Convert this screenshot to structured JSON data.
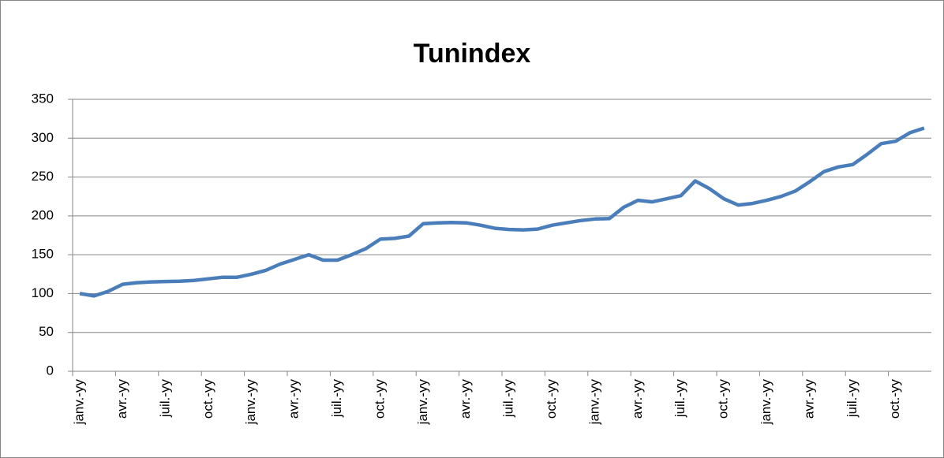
{
  "chart_data": {
    "type": "line",
    "title": "Tunindex",
    "categories": [
      "janv.-yy",
      null,
      null,
      "avr.-yy",
      null,
      null,
      "juil.-yy",
      null,
      null,
      "oct.-yy",
      null,
      null,
      "janv.-yy",
      null,
      null,
      "avr.-yy",
      null,
      null,
      "juil.-yy",
      null,
      null,
      "oct.-yy",
      null,
      null,
      "janv.-yy",
      null,
      null,
      "avr.-yy",
      null,
      null,
      "juil.-yy",
      null,
      null,
      "oct.-yy",
      null,
      null,
      "janv.-yy",
      null,
      null,
      "avr.-yy",
      null,
      null,
      "juil.-yy",
      null,
      null,
      "oct.-yy",
      null,
      null,
      "janv.-yy",
      null,
      null,
      "avr.-yy",
      null,
      null,
      "juil.-yy",
      null,
      null,
      "oct.-yy",
      null,
      null
    ],
    "series": [
      {
        "name": "Tunindex",
        "color": "#4a7ebb",
        "values": [
          100,
          97,
          103,
          112,
          114,
          115,
          115.5,
          116,
          117,
          119,
          121,
          121,
          125,
          130,
          138,
          144,
          150,
          143,
          143,
          150,
          158,
          170,
          171,
          174,
          190,
          191,
          191.5,
          191,
          188,
          184,
          182.5,
          182,
          183,
          188,
          191,
          194,
          196,
          196.5,
          211,
          220,
          218,
          222,
          226,
          245,
          235,
          222,
          214,
          216,
          220,
          225,
          232,
          244,
          257,
          263,
          266,
          279,
          293,
          296,
          307,
          313
        ]
      }
    ],
    "ylim": [
      0,
      350
    ],
    "yticks": [
      0,
      50,
      100,
      150,
      200,
      250,
      300,
      350
    ],
    "grid": true
  }
}
